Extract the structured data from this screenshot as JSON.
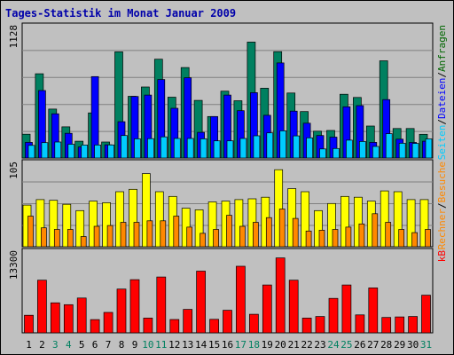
{
  "chart_data": [
    {
      "type": "bar",
      "title": "Tages-Statistik im Monat Januar 2009",
      "y_max_label": "1128",
      "legend": [
        {
          "text": "Anfragen",
          "color": "#006600"
        },
        {
          "text": "/",
          "color": "#000000"
        },
        {
          "text": "Dateien",
          "color": "#0000ff"
        },
        {
          "text": "/",
          "color": "#000000"
        },
        {
          "text": "Seiten",
          "color": "#00ccff"
        }
      ],
      "categories": [
        "1",
        "2",
        "3",
        "4",
        "5",
        "6",
        "7",
        "8",
        "9",
        "10",
        "11",
        "12",
        "13",
        "14",
        "15",
        "16",
        "17",
        "18",
        "19",
        "20",
        "21",
        "22",
        "23",
        "24",
        "25",
        "26",
        "27",
        "28",
        "29",
        "30",
        "31"
      ],
      "weekend_days": [
        "3",
        "4",
        "10",
        "11",
        "17",
        "18",
        "24",
        "25",
        "31"
      ],
      "ylim": [
        0,
        1128
      ],
      "series": [
        {
          "name": "Anfragen",
          "color": "#008060",
          "values": [
            206,
            728,
            423,
            269,
            145,
            390,
            138,
            918,
            533,
            614,
            854,
            526,
            782,
            498,
            358,
            578,
            495,
            1002,
            603,
            919,
            562,
            401,
            232,
            238,
            551,
            523,
            276,
            840,
            255,
            255,
            205
          ]
        },
        {
          "name": "Dateien",
          "color": "#0000ff",
          "values": [
            135,
            583,
            382,
            213,
            95,
            704,
            114,
            314,
            532,
            544,
            678,
            430,
            694,
            222,
            358,
            544,
            409,
            565,
            369,
            822,
            405,
            301,
            194,
            180,
            443,
            453,
            135,
            505,
            163,
            134,
            145
          ]
        },
        {
          "name": "Seiten",
          "color": "#00ccff",
          "values": [
            109,
            133,
            138,
            119,
            112,
            112,
            113,
            194,
            166,
            167,
            183,
            169,
            169,
            166,
            148,
            148,
            169,
            192,
            217,
            235,
            191,
            174,
            78,
            82,
            154,
            143,
            100,
            210,
            127,
            126,
            165
          ]
        }
      ]
    },
    {
      "type": "bar",
      "y_max_label": "105",
      "legend": [
        {
          "text": "Besuche",
          "color": "#ff8800"
        },
        {
          "text": "/",
          "color": "#000000"
        },
        {
          "text": "Rechner",
          "color": "#ff8800"
        }
      ],
      "categories": [
        "1",
        "2",
        "3",
        "4",
        "5",
        "6",
        "7",
        "8",
        "9",
        "10",
        "11",
        "12",
        "13",
        "14",
        "15",
        "16",
        "17",
        "18",
        "19",
        "20",
        "21",
        "22",
        "23",
        "24",
        "25",
        "26",
        "27",
        "28",
        "29",
        "30",
        "31"
      ],
      "ylim": [
        0,
        105
      ],
      "series": [
        {
          "name": "Besuche",
          "color": "#ffff00",
          "values": [
            53,
            60,
            59,
            54,
            46,
            58,
            56,
            70,
            73,
            93,
            70,
            64,
            49,
            47,
            57,
            58,
            60,
            61,
            63,
            98,
            74,
            70,
            46,
            55,
            64,
            63,
            58,
            71,
            70,
            60,
            60
          ]
        },
        {
          "name": "Rechner",
          "color": "#ff8800",
          "values": [
            39,
            24,
            22,
            22,
            13,
            26,
            27,
            31,
            31,
            33,
            33,
            39,
            25,
            17,
            22,
            40,
            26,
            31,
            37,
            48,
            36,
            20,
            21,
            22,
            25,
            29,
            42,
            31,
            22,
            18,
            22
          ]
        }
      ]
    },
    {
      "type": "bar",
      "y_max_label": "13300",
      "legend": [
        {
          "text": "kB",
          "color": "#ff0000"
        }
      ],
      "categories": [
        "1",
        "2",
        "3",
        "4",
        "5",
        "6",
        "7",
        "8",
        "9",
        "10",
        "11",
        "12",
        "13",
        "14",
        "15",
        "16",
        "17",
        "18",
        "19",
        "20",
        "21",
        "22",
        "23",
        "24",
        "25",
        "26",
        "27",
        "28",
        "29",
        "30",
        "31"
      ],
      "ylim": [
        0,
        13300
      ],
      "series": [
        {
          "name": "kB",
          "color": "#ff0000",
          "values": [
            2920,
            8760,
            5000,
            4680,
            5800,
            2200,
            3400,
            7280,
            8850,
            2450,
            9300,
            2210,
            3900,
            10270,
            2240,
            3750,
            11080,
            3090,
            7960,
            12470,
            8760,
            2450,
            2720,
            5740,
            7960,
            2990,
            7480,
            2550,
            2640,
            2720,
            6270
          ]
        }
      ]
    }
  ]
}
